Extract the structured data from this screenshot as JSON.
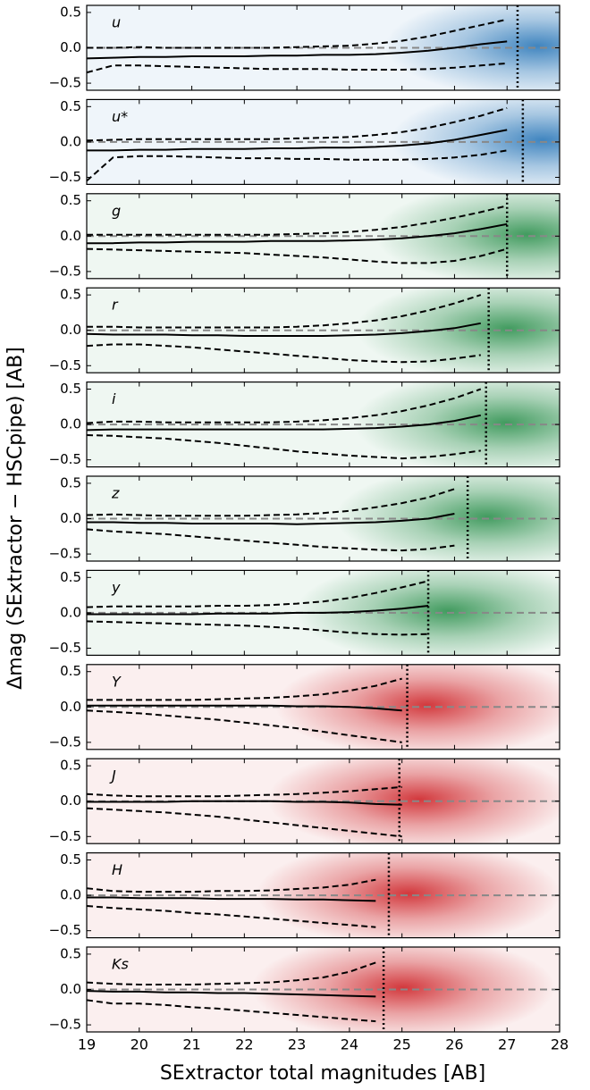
{
  "chart_data": {
    "type": "line",
    "xlabel": "SExtractor total magnitudes [AB]",
    "ylabel": "Δmag (SExtractor − HSCpipe) [AB]",
    "xlim": [
      19,
      28
    ],
    "xticks": [
      19,
      20,
      21,
      22,
      23,
      24,
      25,
      26,
      27,
      28
    ],
    "ylim": [
      -0.6,
      0.6
    ],
    "yticks": [
      {
        "value": -0.5,
        "label": "−0.5"
      },
      {
        "value": 0,
        "label": "0.0"
      },
      0.5
    ],
    "x": [
      19,
      19.5,
      20,
      20.5,
      21,
      21.5,
      22,
      22.5,
      23,
      23.5,
      24,
      24.5,
      25,
      25.5,
      26,
      26.5,
      27
    ],
    "panels": [
      {
        "label": "u",
        "color": "#2171b5",
        "limit": 27.2,
        "median": [
          -0.15,
          -0.14,
          -0.13,
          -0.13,
          -0.12,
          -0.12,
          -0.12,
          -0.11,
          -0.11,
          -0.1,
          -0.1,
          -0.09,
          -0.07,
          -0.04,
          0.0,
          0.05,
          0.09
        ],
        "upper": [
          0.0,
          0.0,
          0.01,
          0.0,
          0.0,
          0.0,
          0.0,
          0.0,
          0.01,
          0.02,
          0.03,
          0.06,
          0.1,
          0.16,
          0.24,
          0.32,
          0.4
        ],
        "lower": [
          -0.35,
          -0.25,
          -0.25,
          -0.26,
          -0.27,
          -0.28,
          -0.29,
          -0.3,
          -0.3,
          -0.3,
          -0.31,
          -0.31,
          -0.31,
          -0.3,
          -0.28,
          -0.25,
          -0.22
        ]
      },
      {
        "label": "u*",
        "color": "#2171b5",
        "limit": 27.3,
        "median": [
          -0.12,
          -0.12,
          -0.11,
          -0.11,
          -0.1,
          -0.1,
          -0.1,
          -0.09,
          -0.09,
          -0.08,
          -0.08,
          -0.07,
          -0.05,
          -0.02,
          0.03,
          0.1,
          0.17
        ],
        "upper": [
          0.02,
          0.03,
          0.04,
          0.04,
          0.04,
          0.04,
          0.04,
          0.04,
          0.05,
          0.06,
          0.07,
          0.1,
          0.14,
          0.2,
          0.28,
          0.37,
          0.48
        ],
        "lower": [
          -0.55,
          -0.22,
          -0.2,
          -0.2,
          -0.21,
          -0.22,
          -0.23,
          -0.23,
          -0.24,
          -0.24,
          -0.25,
          -0.25,
          -0.25,
          -0.24,
          -0.22,
          -0.18,
          -0.12
        ]
      },
      {
        "label": "g",
        "color": "#238b45",
        "limit": 27.0,
        "median": [
          -0.1,
          -0.1,
          -0.09,
          -0.09,
          -0.08,
          -0.08,
          -0.08,
          -0.07,
          -0.07,
          -0.07,
          -0.06,
          -0.05,
          -0.03,
          0.0,
          0.04,
          0.1,
          0.17
        ],
        "upper": [
          0.02,
          0.02,
          0.02,
          0.02,
          0.02,
          0.02,
          0.02,
          0.02,
          0.03,
          0.04,
          0.06,
          0.09,
          0.13,
          0.19,
          0.26,
          0.34,
          0.43
        ],
        "lower": [
          -0.18,
          -0.19,
          -0.2,
          -0.21,
          -0.22,
          -0.23,
          -0.24,
          -0.26,
          -0.28,
          -0.3,
          -0.33,
          -0.36,
          -0.38,
          -0.38,
          -0.35,
          -0.28,
          -0.18
        ]
      },
      {
        "label": "r",
        "color": "#238b45",
        "limit": 26.65,
        "median": [
          -0.05,
          -0.06,
          -0.06,
          -0.06,
          -0.07,
          -0.07,
          -0.08,
          -0.08,
          -0.08,
          -0.08,
          -0.07,
          -0.06,
          -0.04,
          -0.01,
          0.03,
          0.1,
          null
        ],
        "upper": [
          0.05,
          0.05,
          0.04,
          0.04,
          0.04,
          0.04,
          0.04,
          0.04,
          0.05,
          0.07,
          0.1,
          0.14,
          0.2,
          0.28,
          0.38,
          0.5,
          null
        ],
        "lower": [
          -0.22,
          -0.2,
          -0.2,
          -0.22,
          -0.24,
          -0.27,
          -0.3,
          -0.33,
          -0.36,
          -0.39,
          -0.42,
          -0.44,
          -0.45,
          -0.44,
          -0.4,
          -0.35,
          null
        ]
      },
      {
        "label": "i",
        "color": "#238b45",
        "limit": 26.6,
        "median": [
          -0.08,
          -0.07,
          -0.07,
          -0.07,
          -0.07,
          -0.07,
          -0.07,
          -0.07,
          -0.07,
          -0.07,
          -0.06,
          -0.05,
          -0.03,
          0.0,
          0.05,
          0.13,
          null
        ],
        "upper": [
          0.02,
          0.04,
          0.04,
          0.03,
          0.03,
          0.03,
          0.03,
          0.03,
          0.04,
          0.06,
          0.09,
          0.13,
          0.19,
          0.27,
          0.37,
          0.5,
          null
        ],
        "lower": [
          -0.15,
          -0.16,
          -0.18,
          -0.2,
          -0.23,
          -0.26,
          -0.3,
          -0.34,
          -0.38,
          -0.41,
          -0.44,
          -0.46,
          -0.48,
          -0.46,
          -0.42,
          -0.37,
          null
        ]
      },
      {
        "label": "z",
        "color": "#238b45",
        "limit": 26.25,
        "median": [
          -0.05,
          -0.05,
          -0.06,
          -0.06,
          -0.07,
          -0.07,
          -0.07,
          -0.07,
          -0.08,
          -0.07,
          -0.06,
          -0.05,
          -0.03,
          0.0,
          0.07,
          null,
          null
        ],
        "upper": [
          0.05,
          0.06,
          0.05,
          0.04,
          0.04,
          0.04,
          0.04,
          0.05,
          0.06,
          0.08,
          0.11,
          0.16,
          0.22,
          0.3,
          0.42,
          null,
          null
        ],
        "lower": [
          -0.15,
          -0.18,
          -0.2,
          -0.22,
          -0.25,
          -0.28,
          -0.31,
          -0.34,
          -0.37,
          -0.4,
          -0.42,
          -0.44,
          -0.45,
          -0.43,
          -0.38,
          null,
          null
        ]
      },
      {
        "label": "y",
        "color": "#238b45",
        "limit": 25.5,
        "median": [
          -0.02,
          -0.02,
          -0.02,
          -0.02,
          -0.02,
          -0.01,
          -0.01,
          -0.01,
          0.0,
          0.0,
          0.01,
          0.03,
          0.06,
          0.1,
          null,
          null,
          null
        ],
        "upper": [
          0.08,
          0.09,
          0.09,
          0.09,
          0.09,
          0.1,
          0.1,
          0.11,
          0.13,
          0.16,
          0.21,
          0.28,
          0.36,
          0.45,
          null,
          null,
          null
        ],
        "lower": [
          -0.12,
          -0.13,
          -0.14,
          -0.15,
          -0.16,
          -0.17,
          -0.18,
          -0.2,
          -0.22,
          -0.25,
          -0.28,
          -0.3,
          -0.31,
          -0.3,
          null,
          null,
          null
        ]
      },
      {
        "label": "Y",
        "color": "#cb181d",
        "limit": 25.1,
        "median": [
          0.02,
          0.02,
          0.02,
          0.02,
          0.02,
          0.02,
          0.02,
          0.02,
          0.01,
          0.01,
          0.0,
          -0.02,
          -0.05,
          null,
          null,
          null,
          null
        ],
        "upper": [
          0.1,
          0.1,
          0.1,
          0.1,
          0.1,
          0.11,
          0.12,
          0.13,
          0.15,
          0.18,
          0.23,
          0.3,
          0.4,
          null,
          null,
          null,
          null
        ],
        "lower": [
          -0.05,
          -0.07,
          -0.09,
          -0.12,
          -0.15,
          -0.18,
          -0.22,
          -0.26,
          -0.3,
          -0.35,
          -0.4,
          -0.45,
          -0.5,
          null,
          null,
          null,
          null
        ]
      },
      {
        "label": "J",
        "color": "#cb181d",
        "limit": 24.95,
        "median": [
          -0.01,
          -0.01,
          -0.01,
          -0.01,
          0.0,
          0.0,
          0.0,
          0.0,
          -0.01,
          -0.01,
          -0.02,
          -0.04,
          -0.05,
          null,
          null,
          null,
          null
        ],
        "upper": [
          0.1,
          0.08,
          0.07,
          0.07,
          0.07,
          0.07,
          0.08,
          0.09,
          0.1,
          0.12,
          0.14,
          0.17,
          0.2,
          null,
          null,
          null,
          null
        ],
        "lower": [
          -0.1,
          -0.12,
          -0.14,
          -0.16,
          -0.19,
          -0.22,
          -0.26,
          -0.3,
          -0.34,
          -0.38,
          -0.42,
          -0.46,
          -0.5,
          null,
          null,
          null,
          null
        ]
      },
      {
        "label": "H",
        "color": "#cb181d",
        "limit": 24.75,
        "median": [
          -0.03,
          -0.03,
          -0.04,
          -0.04,
          -0.04,
          -0.05,
          -0.05,
          -0.05,
          -0.06,
          -0.06,
          -0.07,
          -0.08,
          null,
          null,
          null,
          null,
          null
        ],
        "upper": [
          0.1,
          0.06,
          0.05,
          0.05,
          0.05,
          0.06,
          0.06,
          0.07,
          0.09,
          0.11,
          0.15,
          0.22,
          null,
          null,
          null,
          null,
          null
        ],
        "lower": [
          -0.15,
          -0.18,
          -0.2,
          -0.22,
          -0.25,
          -0.27,
          -0.3,
          -0.33,
          -0.36,
          -0.39,
          -0.42,
          -0.45,
          null,
          null,
          null,
          null,
          null
        ]
      },
      {
        "label": "Ks",
        "color": "#cb181d",
        "limit": 24.65,
        "median": [
          -0.02,
          -0.03,
          -0.03,
          -0.04,
          -0.04,
          -0.05,
          -0.05,
          -0.06,
          -0.07,
          -0.08,
          -0.09,
          -0.1,
          null,
          null,
          null,
          null,
          null
        ],
        "upper": [
          0.1,
          0.08,
          0.07,
          0.07,
          0.07,
          0.08,
          0.09,
          0.1,
          0.13,
          0.17,
          0.25,
          0.38,
          null,
          null,
          null,
          null,
          null
        ],
        "lower": [
          -0.15,
          -0.2,
          -0.2,
          -0.22,
          -0.25,
          -0.27,
          -0.3,
          -0.33,
          -0.36,
          -0.39,
          -0.42,
          -0.45,
          null,
          null,
          null,
          null,
          null
        ]
      }
    ]
  }
}
